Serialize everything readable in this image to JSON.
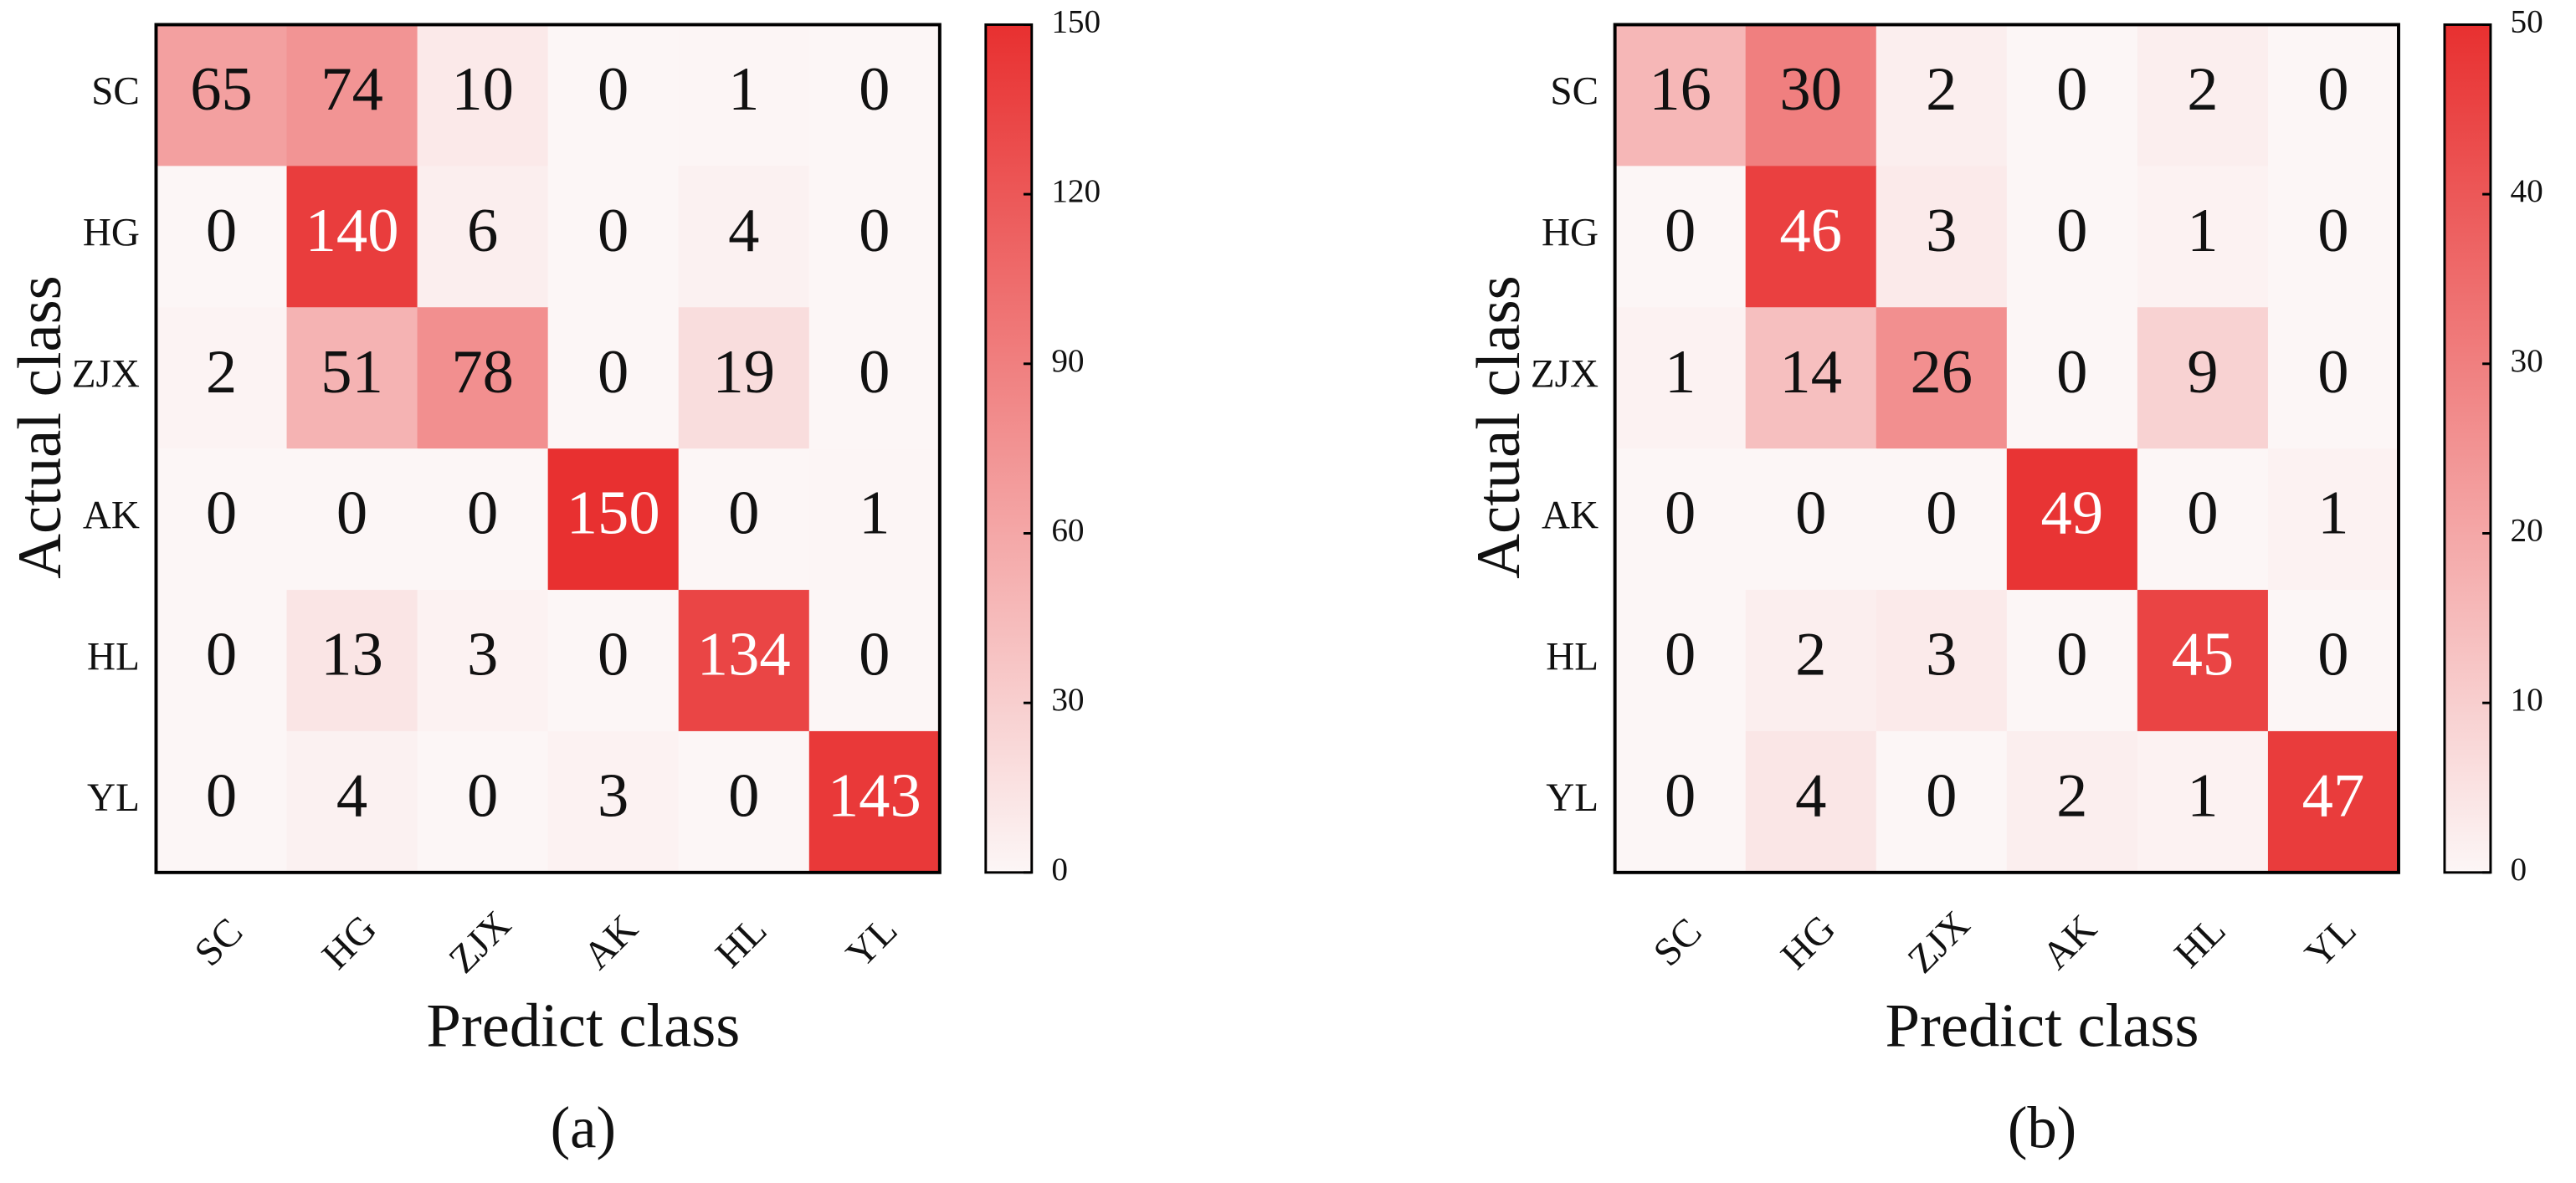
{
  "chart_data": [
    {
      "type": "heatmap",
      "caption": "(a)",
      "xlabel": "Predict class",
      "ylabel": "Actual class",
      "x": [
        "SC",
        "HG",
        "ZJX",
        "AK",
        "HL",
        "YL"
      ],
      "y": [
        "SC",
        "HG",
        "ZJX",
        "AK",
        "HL",
        "YL"
      ],
      "values": [
        [
          65,
          74,
          10,
          0,
          1,
          0
        ],
        [
          0,
          140,
          6,
          0,
          4,
          0
        ],
        [
          2,
          51,
          78,
          0,
          19,
          0
        ],
        [
          0,
          0,
          0,
          150,
          0,
          1
        ],
        [
          0,
          13,
          3,
          0,
          134,
          0
        ],
        [
          0,
          4,
          0,
          3,
          0,
          143
        ]
      ],
      "zlim": [
        0,
        150
      ],
      "zticks": [
        0,
        30,
        60,
        90,
        120,
        150
      ],
      "cmap": [
        "#fcf6f6",
        "#e83030"
      ]
    },
    {
      "type": "heatmap",
      "caption": "(b)",
      "xlabel": "Predict class",
      "ylabel": "Actual class",
      "x": [
        "SC",
        "HG",
        "ZJX",
        "AK",
        "HL",
        "YL"
      ],
      "y": [
        "SC",
        "HG",
        "ZJX",
        "AK",
        "HL",
        "YL"
      ],
      "values": [
        [
          16,
          30,
          2,
          0,
          2,
          0
        ],
        [
          0,
          46,
          3,
          0,
          1,
          0
        ],
        [
          1,
          14,
          26,
          0,
          9,
          0
        ],
        [
          0,
          0,
          0,
          49,
          0,
          1
        ],
        [
          0,
          2,
          3,
          0,
          45,
          0
        ],
        [
          0,
          4,
          0,
          2,
          1,
          47
        ]
      ],
      "zlim": [
        0,
        50
      ],
      "zticks": [
        0,
        10,
        20,
        30,
        40,
        50
      ],
      "cmap": [
        "#fcf6f6",
        "#e83030"
      ]
    }
  ]
}
